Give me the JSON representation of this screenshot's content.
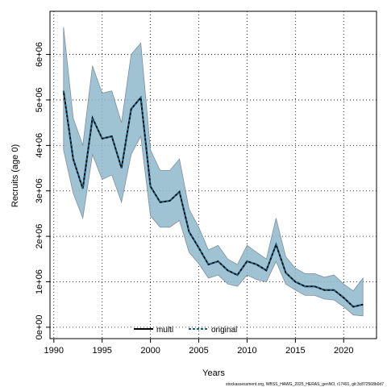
{
  "chart_data": {
    "type": "line",
    "xlabel": "Years",
    "ylabel": "Recruits (age 0)",
    "xlim": [
      1989.6,
      2023.4
    ],
    "ylim": [
      -250000.0,
      6950000.0
    ],
    "x_ticks": [
      1990,
      1995,
      2000,
      2005,
      2010,
      2015,
      2020
    ],
    "y_ticks": [
      0,
      1000000,
      2000000,
      3000000,
      4000000,
      5000000,
      6000000
    ],
    "y_tick_labels": [
      "0e+00",
      "1e+06",
      "2e+06",
      "3e+06",
      "4e+06",
      "5e+06",
      "6e+06"
    ],
    "grid": true,
    "legend_position": "bottom-center",
    "band_color": "#8fb9cc",
    "years": [
      1991,
      1992,
      1993,
      1994,
      1995,
      1996,
      1997,
      1998,
      1999,
      2000,
      2001,
      2002,
      2003,
      2004,
      2005,
      2006,
      2007,
      2008,
      2009,
      2010,
      2011,
      2012,
      2013,
      2014,
      2015,
      2016,
      2017,
      2018,
      2019,
      2020,
      2021,
      2022
    ],
    "series": [
      {
        "name": "multi",
        "color": "#000000",
        "style": "solid",
        "values": [
          5200000,
          3700000,
          3050000,
          4600000,
          4150000,
          4200000,
          3500000,
          4800000,
          5050000,
          3100000,
          2750000,
          2780000,
          2980000,
          2100000,
          1750000,
          1380000,
          1450000,
          1250000,
          1150000,
          1450000,
          1380000,
          1250000,
          1820000,
          1200000,
          1000000,
          900000,
          900000,
          820000,
          820000,
          650000,
          450000,
          500000
        ]
      },
      {
        "name": "original",
        "color": "#1a5e86",
        "style": "dashed",
        "values": [
          5200000,
          3700000,
          3050000,
          4600000,
          4150000,
          4200000,
          3500000,
          4800000,
          5050000,
          3100000,
          2750000,
          2780000,
          2980000,
          2100000,
          1750000,
          1380000,
          1450000,
          1250000,
          1150000,
          1450000,
          1380000,
          1250000,
          1820000,
          1200000,
          1000000,
          900000,
          900000,
          820000,
          820000,
          650000,
          450000,
          500000
        ]
      }
    ],
    "band_upper": [
      6600000,
      4600000,
      4000000,
      5750000,
      5150000,
      5200000,
      4500000,
      6000000,
      6250000,
      3900000,
      3450000,
      3450000,
      3700000,
      2600000,
      2200000,
      1700000,
      1800000,
      1500000,
      1380000,
      1800000,
      1650000,
      1500000,
      2400000,
      1550000,
      1300000,
      1180000,
      1180000,
      1100000,
      1150000,
      950000,
      800000,
      1080000
    ],
    "band_lower": [
      3900000,
      2950000,
      2400000,
      3800000,
      3250000,
      3350000,
      2750000,
      3800000,
      4200000,
      2450000,
      2200000,
      2200000,
      2350000,
      1650000,
      1400000,
      1080000,
      1150000,
      950000,
      900000,
      1150000,
      1050000,
      1000000,
      1450000,
      950000,
      820000,
      700000,
      700000,
      620000,
      600000,
      450000,
      270000,
      250000
    ]
  },
  "legend": {
    "multi_label": "multi",
    "original_label": "original"
  },
  "footer": "stockassessment.org, WBSS_HAWG_2025_HERAS_genNO, r17491, git:3c872568b0d7"
}
